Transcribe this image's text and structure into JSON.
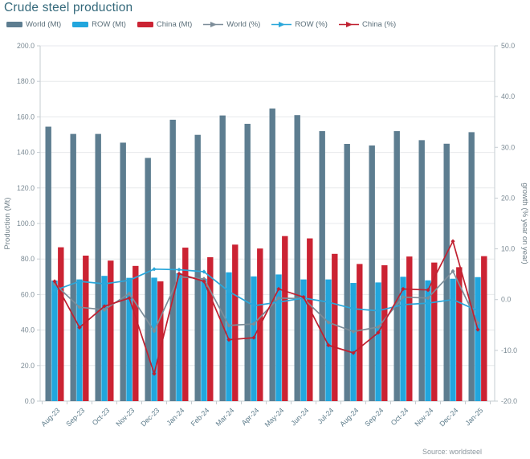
{
  "title": "Crude steel production",
  "source": "Source: worldsteel",
  "legend": [
    {
      "label": "World (Mt)",
      "type": "bar",
      "color": "#5d7d90"
    },
    {
      "label": "ROW (Mt)",
      "type": "bar",
      "color": "#22a6dd"
    },
    {
      "label": "China (Mt)",
      "type": "bar",
      "color": "#cb2333"
    },
    {
      "label": "World (%)",
      "type": "line",
      "color": "#7d8d99"
    },
    {
      "label": "ROW (%)",
      "type": "line",
      "color": "#2aa7da"
    },
    {
      "label": "China (%)",
      "type": "line",
      "color": "#c02030"
    }
  ],
  "chart_data": {
    "type": "bar",
    "subtype": "grouped bars with overlaid lines, dual y-axes",
    "categories": [
      "Aug-23",
      "Sep-23",
      "Oct-23",
      "Nov-23",
      "Dec-23",
      "Jan-24",
      "Feb-24",
      "Mar-24",
      "Apr-24",
      "May-24",
      "Jun-24",
      "Jul-24",
      "Aug-24",
      "Sep-24",
      "Oct-24",
      "Nov-24",
      "Dec-24",
      "Jan-25"
    ],
    "bar_series": [
      {
        "name": "World (Mt)",
        "axis": "left",
        "color": "#5d7d90",
        "values": [
          154.5,
          150.4,
          150.4,
          145.5,
          136.9,
          158.4,
          149.9,
          160.8,
          156.1,
          164.7,
          161.0,
          152.0,
          144.8,
          143.9,
          152.0,
          146.9,
          144.9,
          151.4
        ]
      },
      {
        "name": "ROW (Mt)",
        "axis": "left",
        "color": "#22a6dd",
        "values": [
          67.9,
          68.5,
          70.5,
          69.4,
          69.5,
          72.0,
          68.9,
          72.5,
          70.2,
          71.3,
          68.5,
          68.5,
          66.5,
          66.8,
          70.0,
          68.0,
          68.9,
          69.8
        ]
      },
      {
        "name": "China (Mt)",
        "axis": "left",
        "color": "#cb2333",
        "values": [
          86.6,
          81.9,
          79.1,
          76.1,
          67.4,
          86.4,
          81.0,
          88.1,
          85.9,
          92.9,
          91.6,
          82.9,
          77.2,
          76.5,
          81.4,
          78.0,
          75.4,
          81.6
        ]
      }
    ],
    "line_series": [
      {
        "name": "World (%)",
        "axis": "right",
        "color": "#7d8d99",
        "values": [
          3.1,
          -1.5,
          -2.0,
          1.2,
          -6.2,
          4.5,
          4.1,
          -5.1,
          -4.8,
          0.3,
          0.2,
          -4.5,
          -6.3,
          -5.4,
          0.5,
          0.3,
          5.6,
          -4.6
        ]
      },
      {
        "name": "ROW (%)",
        "axis": "right",
        "color": "#2aa7da",
        "values": [
          1.8,
          3.6,
          3.1,
          3.8,
          6.0,
          5.9,
          5.5,
          1.6,
          -1.2,
          -0.5,
          0.3,
          -0.5,
          -1.8,
          -2.2,
          -1.0,
          -0.7,
          0.0,
          -2.2
        ]
      },
      {
        "name": "China (%)",
        "axis": "right",
        "color": "#c02030",
        "values": [
          3.6,
          -5.5,
          -1.3,
          0.3,
          -14.6,
          5.1,
          3.6,
          -7.9,
          -7.5,
          2.1,
          0.5,
          -9.0,
          -10.5,
          -6.5,
          2.1,
          1.9,
          11.5,
          -5.9
        ]
      }
    ],
    "left_axis": {
      "label": "Production (Mt)",
      "min": 0,
      "max": 200,
      "step": 20
    },
    "right_axis": {
      "label": "growth (% year on year)",
      "min": -20,
      "max": 50,
      "step": 10
    },
    "grid": true,
    "legend_position": "top",
    "x_tick_rotation": -45
  }
}
